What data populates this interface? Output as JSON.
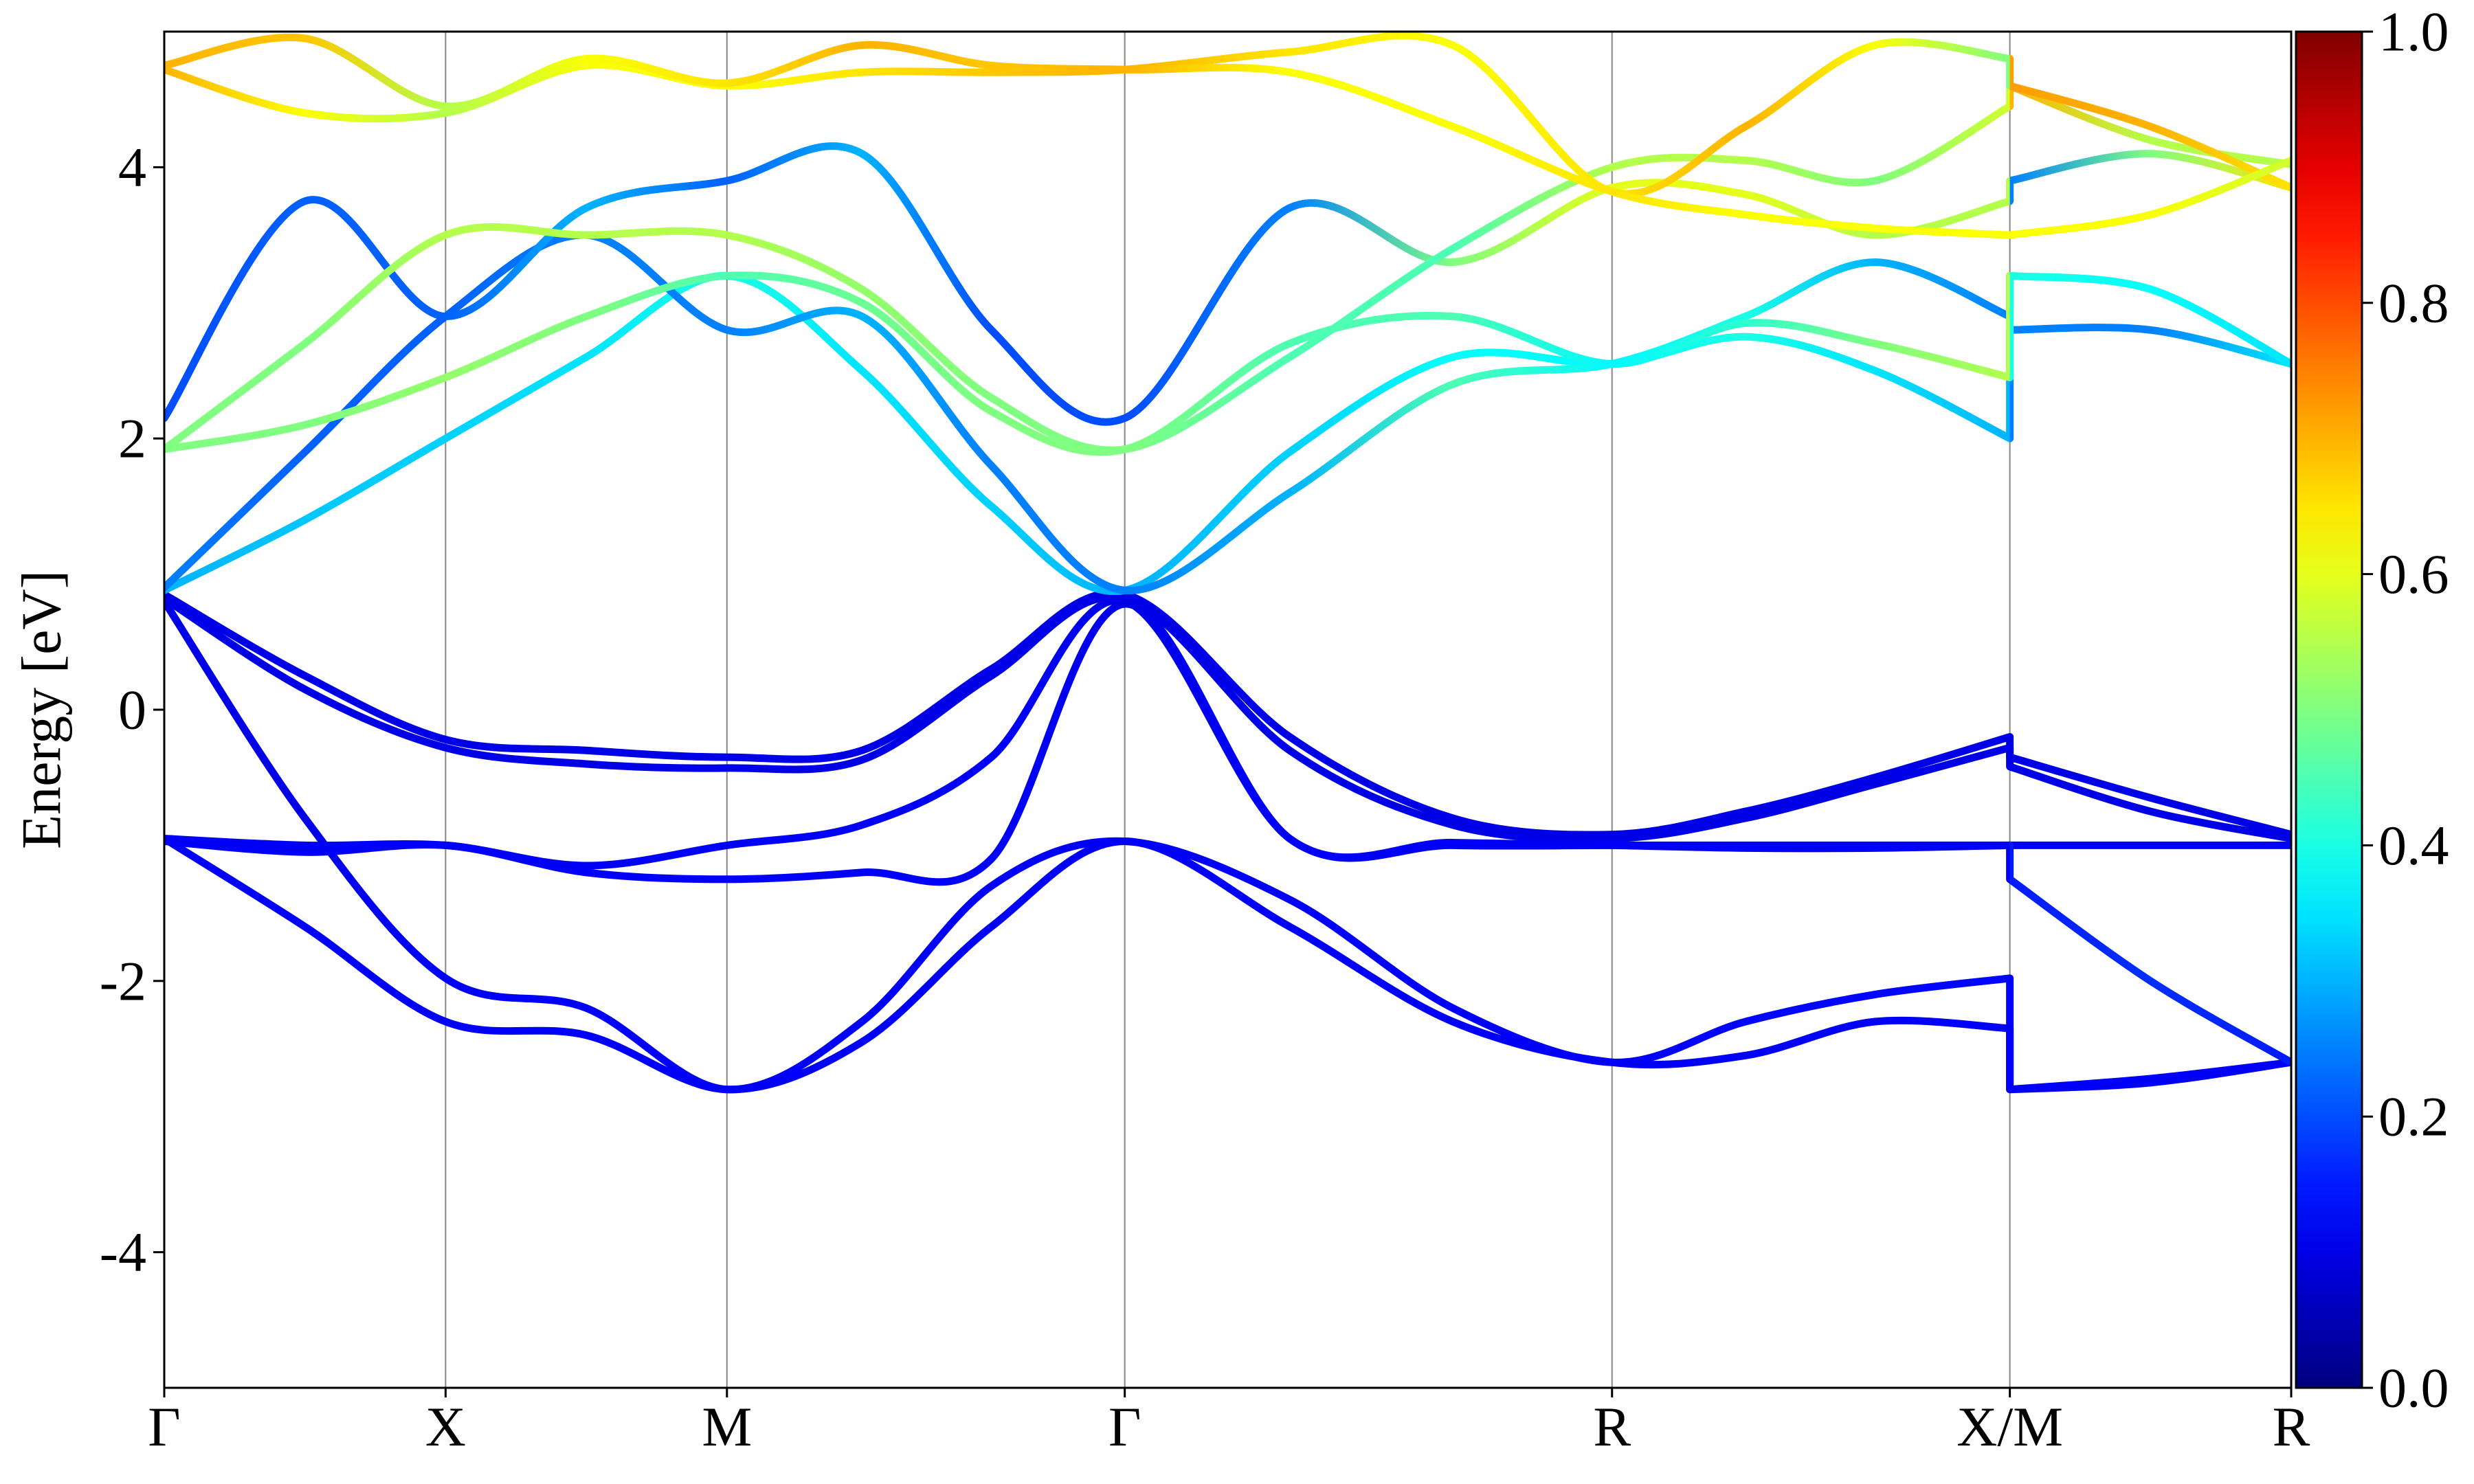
{
  "chart_data": {
    "type": "band-structure",
    "ylabel": "Energy [eV]",
    "colormap": "jet",
    "x": [
      0,
      0.25,
      0.5,
      0.75,
      1.0,
      1.24,
      1.47,
      1.707,
      2.0,
      2.29,
      2.573,
      2.81,
      3.04,
      3.28,
      3.28,
      3.53,
      3.78
    ],
    "xlim": [
      0,
      3.78
    ],
    "xticks": [
      {
        "value": 0,
        "label": "Γ"
      },
      {
        "value": 0.5,
        "label": "X"
      },
      {
        "value": 1.0,
        "label": "M"
      },
      {
        "value": 1.707,
        "label": "Γ"
      },
      {
        "value": 2.573,
        "label": "R"
      },
      {
        "value": 3.28,
        "label": "X/M"
      },
      {
        "value": 3.78,
        "label": "R"
      }
    ],
    "ylim": [
      -5,
      5
    ],
    "yticks": [
      -4,
      -2,
      0,
      2,
      4
    ],
    "grid": true,
    "clim": [
      0,
      1
    ],
    "cticks": [
      {
        "value": 0,
        "label": "0.0"
      },
      {
        "value": 0.2,
        "label": "0.2"
      },
      {
        "value": 0.4,
        "label": "0.4"
      },
      {
        "value": 0.6,
        "label": "0.6"
      },
      {
        "value": 0.8,
        "label": "0.8"
      },
      {
        "value": 1,
        "label": "1.0"
      }
    ],
    "series": [
      {
        "values": [
          0.85,
          0.25,
          -0.22,
          -0.3,
          -0.35,
          -0.3,
          0.3,
          0.85,
          -0.2,
          -0.8,
          -0.92,
          -0.75,
          -0.5,
          -0.2,
          -0.35,
          -0.65,
          -0.92
        ],
        "weights": [
          0.1,
          0.1,
          0.1,
          0.1,
          0.1,
          0.1,
          0.1,
          0.1,
          0.1,
          0.1,
          0.1,
          0.1,
          0.1,
          0.1,
          0.1,
          0.1,
          0.1
        ]
      },
      {
        "values": [
          0.82,
          0.15,
          -0.28,
          -0.4,
          -0.43,
          -0.37,
          0.25,
          0.82,
          -0.3,
          -0.85,
          -0.95,
          -0.8,
          -0.55,
          -0.28,
          -0.42,
          -0.75,
          -0.95
        ],
        "weights": [
          0.1,
          0.1,
          0.1,
          0.1,
          0.1,
          0.1,
          0.1,
          0.1,
          0.1,
          0.1,
          0.1,
          0.1,
          0.1,
          0.1,
          0.1,
          0.1,
          0.1
        ]
      },
      {
        "values": [
          0.8,
          -0.8,
          -1.98,
          -2.2,
          -2.8,
          -2.3,
          -1.3,
          -0.97,
          -1.4,
          -2.2,
          -2.6,
          -2.3,
          -2.1,
          -1.98,
          -2.8,
          -2.72,
          -2.6
        ],
        "weights": [
          0.1,
          0.1,
          0.12,
          0.12,
          0.12,
          0.12,
          0.12,
          0.12,
          0.12,
          0.12,
          0.12,
          0.13,
          0.13,
          0.13,
          0.12,
          0.12,
          0.12
        ]
      },
      {
        "values": [
          -0.95,
          -1.0,
          -1.0,
          -1.15,
          -1.0,
          -0.85,
          -0.35,
          0.8,
          -0.95,
          -0.98,
          -1.0,
          -1.02,
          -1.02,
          -1.0,
          -1.0,
          -1.0,
          -1.0
        ],
        "weights": [
          0.12,
          0.12,
          0.12,
          0.12,
          0.12,
          0.12,
          0.12,
          0.1,
          0.12,
          0.12,
          0.12,
          0.12,
          0.12,
          0.12,
          0.12,
          0.12,
          0.12
        ]
      },
      {
        "values": [
          -0.95,
          -1.6,
          -2.3,
          -2.4,
          -2.8,
          -2.45,
          -1.6,
          -0.97,
          -1.6,
          -2.3,
          -2.6,
          -2.55,
          -2.3,
          -2.35,
          -2.8,
          -2.75,
          -2.6
        ],
        "weights": [
          0.12,
          0.12,
          0.12,
          0.12,
          0.12,
          0.12,
          0.12,
          0.12,
          0.12,
          0.12,
          0.12,
          0.12,
          0.12,
          0.12,
          0.12,
          0.12,
          0.12
        ]
      },
      {
        "values": [
          -0.97,
          -1.05,
          -1.0,
          -1.2,
          -1.25,
          -1.2,
          -1.1,
          0.78,
          -0.95,
          -1.0,
          -1.0,
          -1.0,
          -1.0,
          -1.0,
          -1.25,
          -2.0,
          -2.6
        ],
        "weights": [
          0.12,
          0.12,
          0.12,
          0.12,
          0.12,
          0.12,
          0.12,
          0.1,
          0.12,
          0.12,
          0.12,
          0.12,
          0.12,
          0.12,
          0.15,
          0.17,
          0.15
        ]
      },
      {
        "values": [
          0.88,
          1.4,
          2.0,
          2.6,
          3.2,
          2.5,
          1.5,
          0.88,
          1.9,
          2.6,
          2.55,
          2.75,
          2.5,
          2.0,
          2.8,
          2.8,
          2.55
        ],
        "weights": [
          0.3,
          0.32,
          0.33,
          0.35,
          0.4,
          0.35,
          0.33,
          0.3,
          0.33,
          0.38,
          0.37,
          0.4,
          0.35,
          0.3,
          0.25,
          0.25,
          0.35
        ]
      },
      {
        "values": [
          0.9,
          1.9,
          2.9,
          3.5,
          2.8,
          2.9,
          1.8,
          0.88,
          1.6,
          2.4,
          2.55,
          2.9,
          3.3,
          2.9,
          3.2,
          3.1,
          2.55
        ],
        "weights": [
          0.25,
          0.22,
          0.22,
          0.25,
          0.25,
          0.3,
          0.25,
          0.25,
          0.3,
          0.45,
          0.37,
          0.4,
          0.3,
          0.25,
          0.4,
          0.38,
          0.35
        ]
      },
      {
        "values": [
          2.15,
          3.75,
          2.9,
          3.7,
          3.9,
          4.1,
          2.8,
          2.15,
          3.7,
          3.3,
          3.85,
          3.8,
          3.5,
          3.75,
          3.9,
          4.1,
          3.85
        ],
        "weights": [
          0.2,
          0.22,
          0.22,
          0.3,
          0.22,
          0.3,
          0.2,
          0.2,
          0.25,
          0.5,
          0.6,
          0.6,
          0.55,
          0.55,
          0.25,
          0.5,
          0.65
        ]
      },
      {
        "values": [
          1.92,
          2.1,
          2.45,
          2.9,
          3.2,
          3.0,
          2.2,
          1.92,
          2.7,
          2.9,
          2.55,
          2.85,
          2.7,
          2.45,
          3.2,
          3.1,
          2.55
        ],
        "weights": [
          0.5,
          0.5,
          0.52,
          0.5,
          0.45,
          0.48,
          0.5,
          0.5,
          0.45,
          0.45,
          0.37,
          0.42,
          0.5,
          0.55,
          0.4,
          0.38,
          0.35
        ]
      },
      {
        "values": [
          1.92,
          2.7,
          3.5,
          3.5,
          3.5,
          3.1,
          2.3,
          1.92,
          2.6,
          3.4,
          4.0,
          4.05,
          3.9,
          4.45,
          4.6,
          4.2,
          4.02
        ],
        "weights": [
          0.5,
          0.5,
          0.55,
          0.55,
          0.55,
          0.52,
          0.5,
          0.5,
          0.45,
          0.45,
          0.55,
          0.55,
          0.5,
          0.58,
          0.7,
          0.55,
          0.55
        ]
      },
      {
        "values": [
          4.72,
          4.4,
          4.4,
          4.75,
          4.6,
          4.7,
          4.7,
          4.72,
          4.85,
          4.9,
          3.82,
          4.3,
          4.9,
          4.8,
          4.6,
          4.3,
          3.85
        ],
        "weights": [
          0.7,
          0.62,
          0.55,
          0.62,
          0.62,
          0.65,
          0.68,
          0.7,
          0.65,
          0.62,
          0.65,
          0.7,
          0.62,
          0.5,
          0.72,
          0.7,
          0.65
        ]
      },
      {
        "values": [
          4.75,
          4.95,
          4.45,
          4.8,
          4.62,
          4.9,
          4.75,
          4.72,
          4.7,
          4.3,
          3.82,
          3.65,
          3.55,
          3.5,
          3.5,
          3.65,
          4.05
        ],
        "weights": [
          0.7,
          0.68,
          0.55,
          0.62,
          0.65,
          0.7,
          0.68,
          0.7,
          0.62,
          0.62,
          0.65,
          0.62,
          0.62,
          0.62,
          0.62,
          0.62,
          0.58
        ]
      }
    ]
  }
}
